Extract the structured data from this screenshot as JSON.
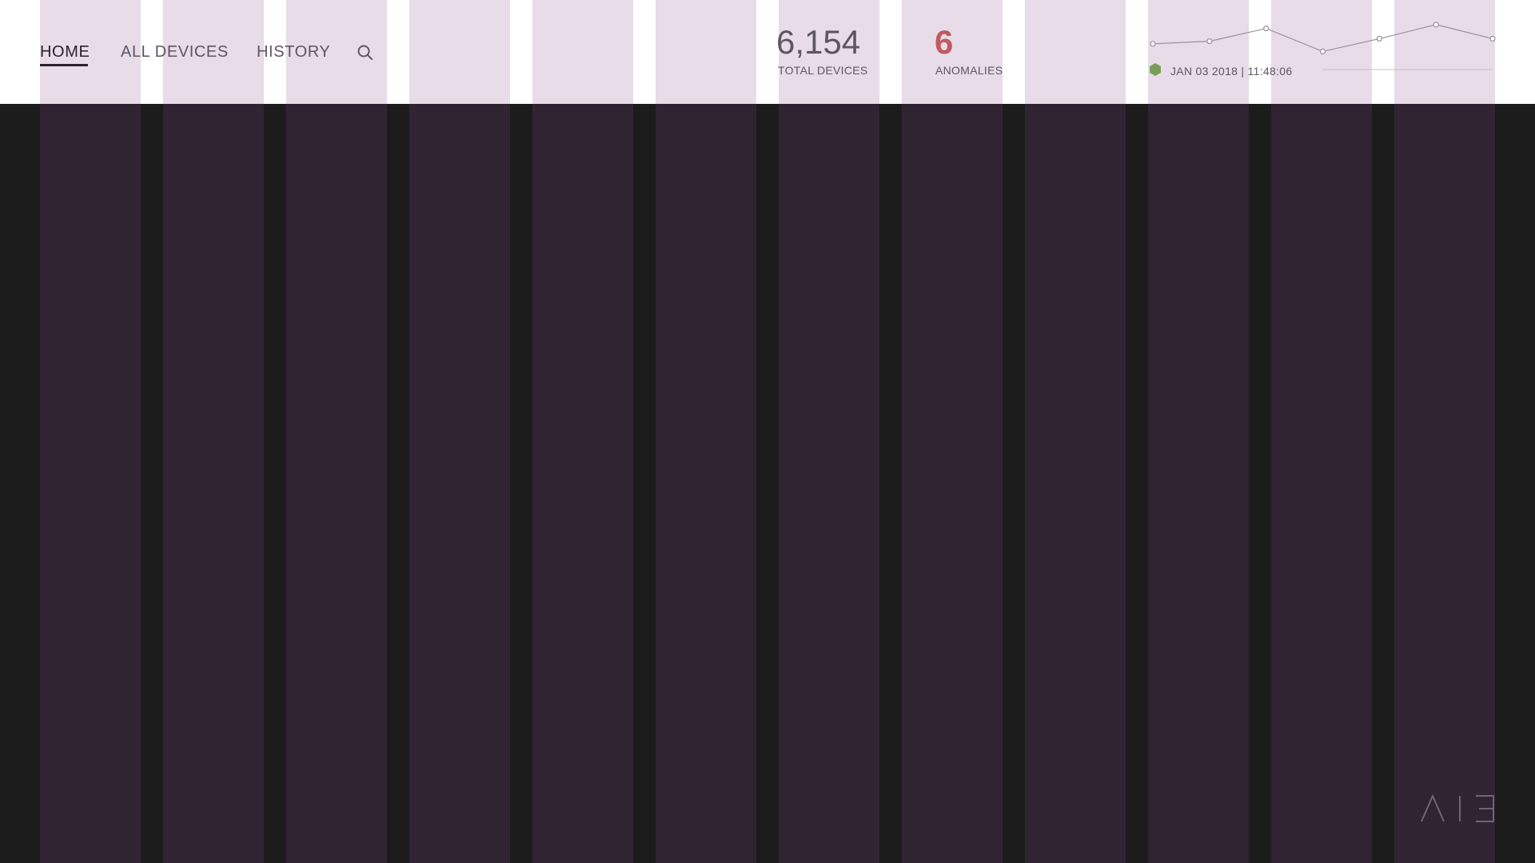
{
  "nav": {
    "home_label": "HOME",
    "all_devices_label": "ALL DEVICES",
    "history_label": "HISTORY",
    "search_icon": "search-icon"
  },
  "stats": {
    "total_devices_value": "6,154",
    "total_devices_label": "TOTAL DEVICES",
    "anomalies_value": "6",
    "anomalies_label": "ANOMALIES"
  },
  "status": {
    "date": "JAN 03 2018",
    "separator": "|",
    "time": "11:48:06",
    "text": "JAN 03 2018  |  11:48:06",
    "indicator_color": "#7a9e5a",
    "indicator_icon": "hexagon-status-icon"
  },
  "sparkline": {
    "values": [
      2,
      4,
      14,
      -4,
      6,
      17,
      6
    ],
    "line_color": "#9a8e9c"
  },
  "colors": {
    "header_bg": "#ffffff",
    "body_bg": "#1b1b1b",
    "column_light": "#e7dce7",
    "column_dark": "#302433",
    "anomaly_accent": "#c05a60",
    "text_muted": "#5f5663"
  },
  "logo": {
    "icon": "aie-logo"
  }
}
